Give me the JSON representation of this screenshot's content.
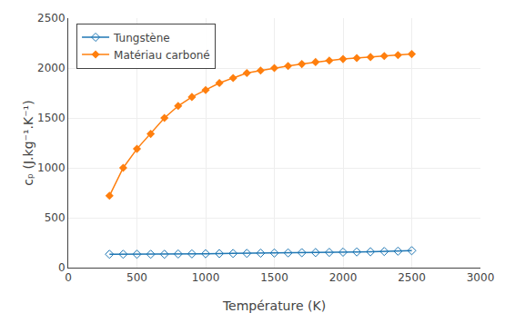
{
  "chart_data": {
    "type": "line",
    "xlabel": "Température (K)",
    "ylabel": "cₚ (J.kg⁻¹.K⁻¹)",
    "x": [
      300,
      400,
      500,
      600,
      700,
      800,
      900,
      1000,
      1100,
      1200,
      1300,
      1400,
      1500,
      1600,
      1700,
      1800,
      1900,
      2000,
      2100,
      2200,
      2300,
      2400,
      2500
    ],
    "series": [
      {
        "name": "Tungstène",
        "marker": "diamond-open",
        "values": [
          134,
          134,
          134,
          134,
          134,
          137,
          138,
          139,
          141,
          142,
          143,
          145,
          147,
          148,
          150,
          151,
          153,
          155,
          157,
          159,
          162,
          165,
          170
        ]
      },
      {
        "name": "Matériau carboné",
        "marker": "diamond",
        "values": [
          720,
          1000,
          1190,
          1340,
          1500,
          1620,
          1710,
          1780,
          1850,
          1900,
          1950,
          1975,
          2000,
          2020,
          2040,
          2060,
          2075,
          2090,
          2100,
          2110,
          2120,
          2130,
          2140
        ]
      }
    ],
    "xlim": [
      0,
      3000
    ],
    "ylim": [
      0,
      2500
    ],
    "xticks": [
      0,
      500,
      1000,
      1500,
      2000,
      2500,
      3000
    ],
    "yticks": [
      0,
      500,
      1000,
      1500,
      2000,
      2500
    ],
    "grid": true,
    "legend": "upper left"
  }
}
